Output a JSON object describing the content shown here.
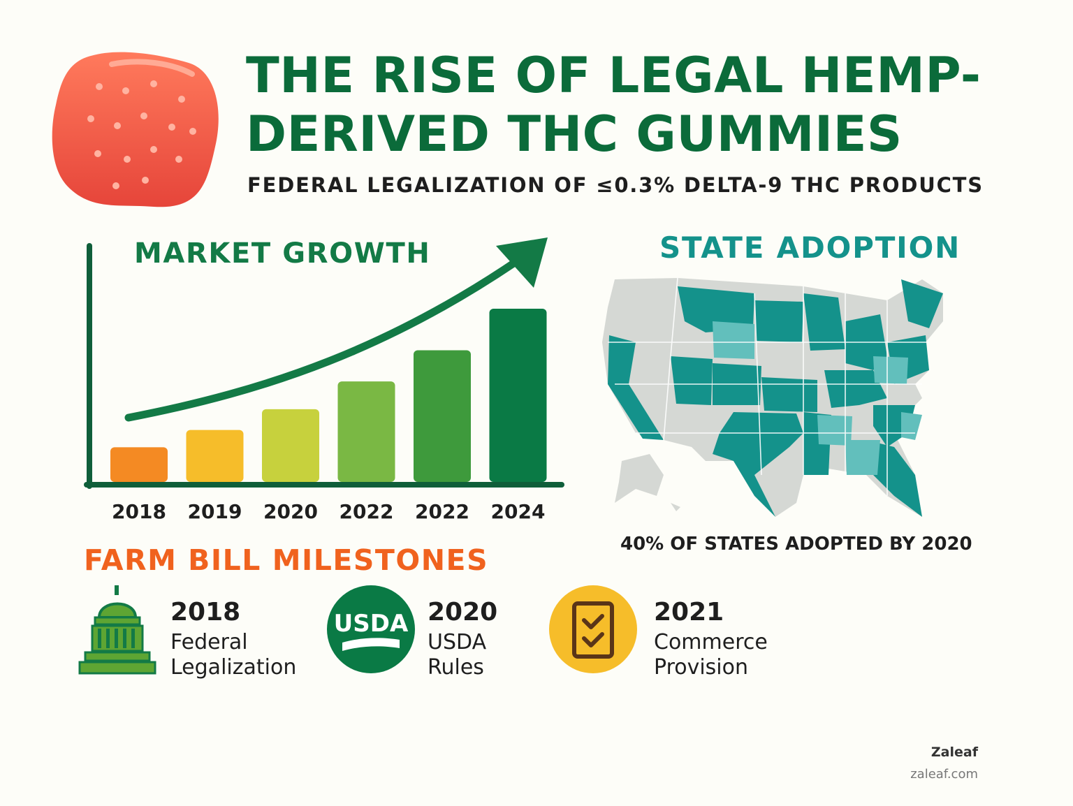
{
  "header": {
    "title": "THE RISE OF LEGAL HEMP-DERIVED THC GUMMIES",
    "subtitle": "FEDERAL LEGALIZATION OF ≤0.3% DELTA-9 THC PRODUCTS"
  },
  "market_growth": {
    "title": "MARKET GROWTH"
  },
  "chart_data": {
    "type": "bar",
    "categories": [
      "2018",
      "2019",
      "2020",
      "2022",
      "2022",
      "2024"
    ],
    "values": [
      1.0,
      1.5,
      2.1,
      2.9,
      3.8,
      5.0
    ],
    "colors": [
      "#f48a23",
      "#f6bd2a",
      "#c7d13d",
      "#7ab844",
      "#3e9a3c",
      "#0a7a45"
    ],
    "trend": "upward arrow",
    "axis_color": "#0f5e3a"
  },
  "state_adoption": {
    "title": "STATE ADOPTION",
    "caption": "40% OF STATES ADOPTED BY 2020",
    "colors": {
      "adopted": "#14928b",
      "partial": "#62bfbc",
      "not_adopted": "#d5d8d4"
    }
  },
  "milestones": {
    "title": "FARM BILL MILESTONES",
    "items": [
      {
        "year": "2018",
        "line1": "Federal",
        "line2": "Legalization",
        "icon": "capitol-icon"
      },
      {
        "year": "2020",
        "line1": "USDA",
        "line2": "Rules",
        "icon": "usda-icon",
        "badge_text": "USDA"
      },
      {
        "year": "2021",
        "line1": "Commerce",
        "line2": "Provision",
        "icon": "checklist-icon"
      }
    ]
  },
  "brand": {
    "name": "Zaleaf",
    "url": "zaleaf.com"
  }
}
